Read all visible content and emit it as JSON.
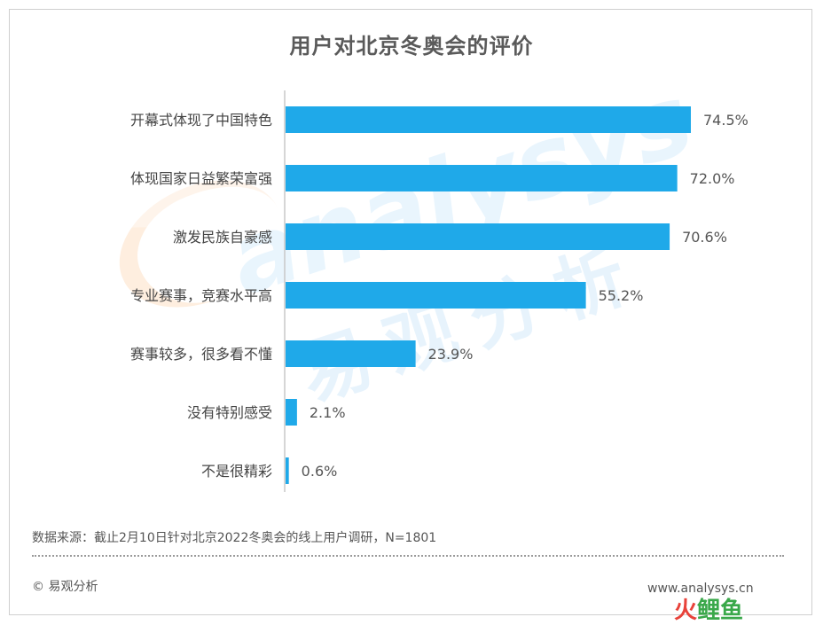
{
  "title": "用户对北京冬奥会的评价",
  "chart_data": {
    "type": "bar",
    "orientation": "horizontal",
    "categories": [
      "开幕式体现了中国特色",
      "体现国家日益繁荣富强",
      "激发民族自豪感",
      "专业赛事，竞赛水平高",
      "赛事较多，很多看不懂",
      "没有特别感受",
      "不是很精彩"
    ],
    "values": [
      74.5,
      72.0,
      70.6,
      55.2,
      23.9,
      2.1,
      0.6
    ],
    "value_labels": [
      "74.5%",
      "72.0%",
      "70.6%",
      "55.2%",
      "23.9%",
      "2.1%",
      "0.6%"
    ],
    "xlim": [
      0,
      100
    ],
    "bar_color": "#1fa9e9",
    "grid": false,
    "legend": "none"
  },
  "watermark": {
    "latin": "analysys",
    "chinese": "易观分析"
  },
  "footer": {
    "source": "数据来源：截止2月10日针对北京2022冬奥会的线上用户调研，N=1801",
    "copyright": "© 易观分析",
    "site": "www.analysys.cn"
  },
  "corner_logo": {
    "part1": "火",
    "part2": "鲤鱼"
  }
}
